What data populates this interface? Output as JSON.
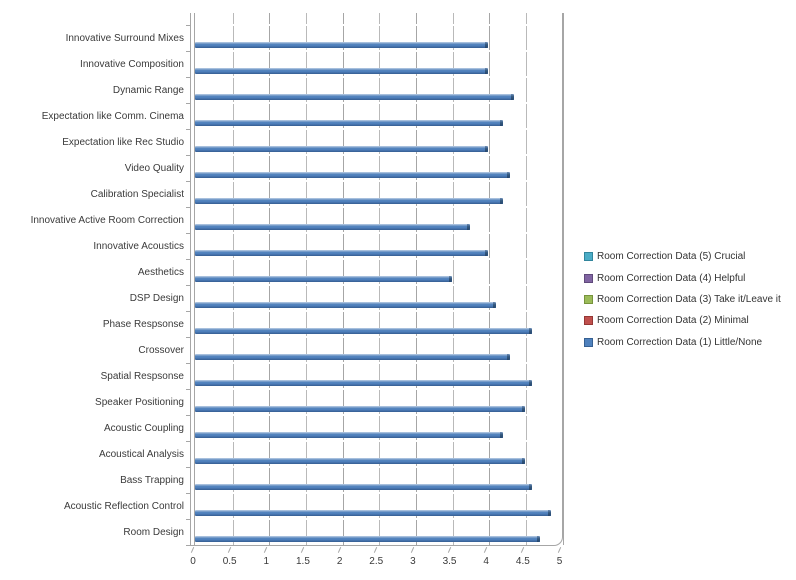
{
  "chart_data": {
    "type": "bar",
    "orientation": "horizontal",
    "title": "",
    "xlabel": "",
    "ylabel": "",
    "xlim": [
      0,
      5
    ],
    "x_tick_labels": [
      "0",
      "0.5",
      "1",
      "1.5",
      "2",
      "2.5",
      "3",
      "3.5",
      "4",
      "4.5",
      "5"
    ],
    "grid": true,
    "legend_position": "right",
    "bar_color": "#4F81BD",
    "categories": [
      "Innovative Surround Mixes",
      "Innovative Composition",
      "Dynamic Range",
      "Expectation like Comm. Cinema",
      "Expectation like Rec Studio",
      "Video Quality",
      "Calibration Specialist",
      "Innovative Active Room Correction",
      "Innovative Acoustics",
      "Aesthetics",
      "DSP Design",
      "Phase Respsonse",
      "Crossover",
      "Spatial Respsonse",
      "Speaker Positioning",
      "Acoustic Coupling",
      "Acoustical Analysis",
      "Bass Trapping",
      "Acoustic Reflection Control",
      "Room Design"
    ],
    "values": [
      4.0,
      4.0,
      4.35,
      4.2,
      4.0,
      4.3,
      4.2,
      3.75,
      4.0,
      3.5,
      4.1,
      4.6,
      4.3,
      4.6,
      4.5,
      4.2,
      4.5,
      4.6,
      4.85,
      4.7
    ],
    "legend": [
      {
        "label": "Room Correction Data (5) Crucial",
        "color": "#4BACC6",
        "border": "#31859C"
      },
      {
        "label": "Room Correction Data (4) Helpful",
        "color": "#8064A2",
        "border": "#604A7B"
      },
      {
        "label": "Room Correction Data (3) Take it/Leave it",
        "color": "#9BBB59",
        "border": "#77933C"
      },
      {
        "label": "Room Correction Data (2) Minimal",
        "color": "#C0504D",
        "border": "#953735"
      },
      {
        "label": "Room Correction Data (1) Little/None",
        "color": "#4F81BD",
        "border": "#366092"
      }
    ]
  }
}
